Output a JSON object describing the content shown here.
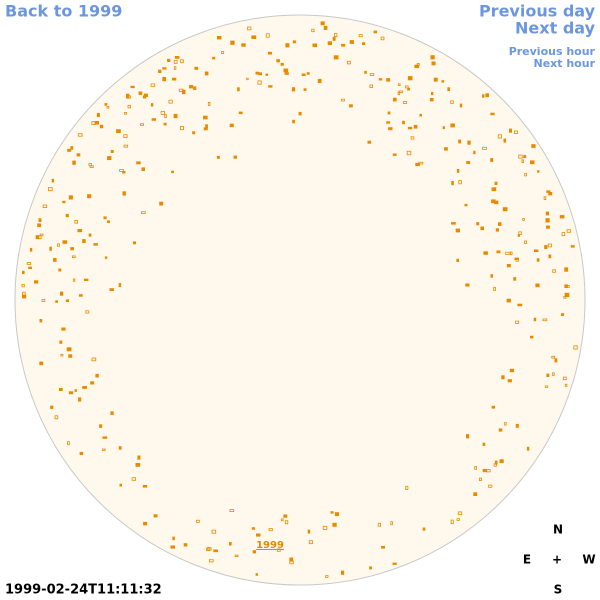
{
  "nav": {
    "back": "Back to 1999",
    "previous_day": "Previous day",
    "next_day": "Next day",
    "previous_hour": "Previous hour",
    "next_hour": "Next hour"
  },
  "disk": {
    "year_label": "1999"
  },
  "timestamp": "1999-02-24T11:11:32",
  "compass": {
    "north": "N",
    "east": "E",
    "center": "+",
    "west": "W",
    "south": "S"
  }
}
